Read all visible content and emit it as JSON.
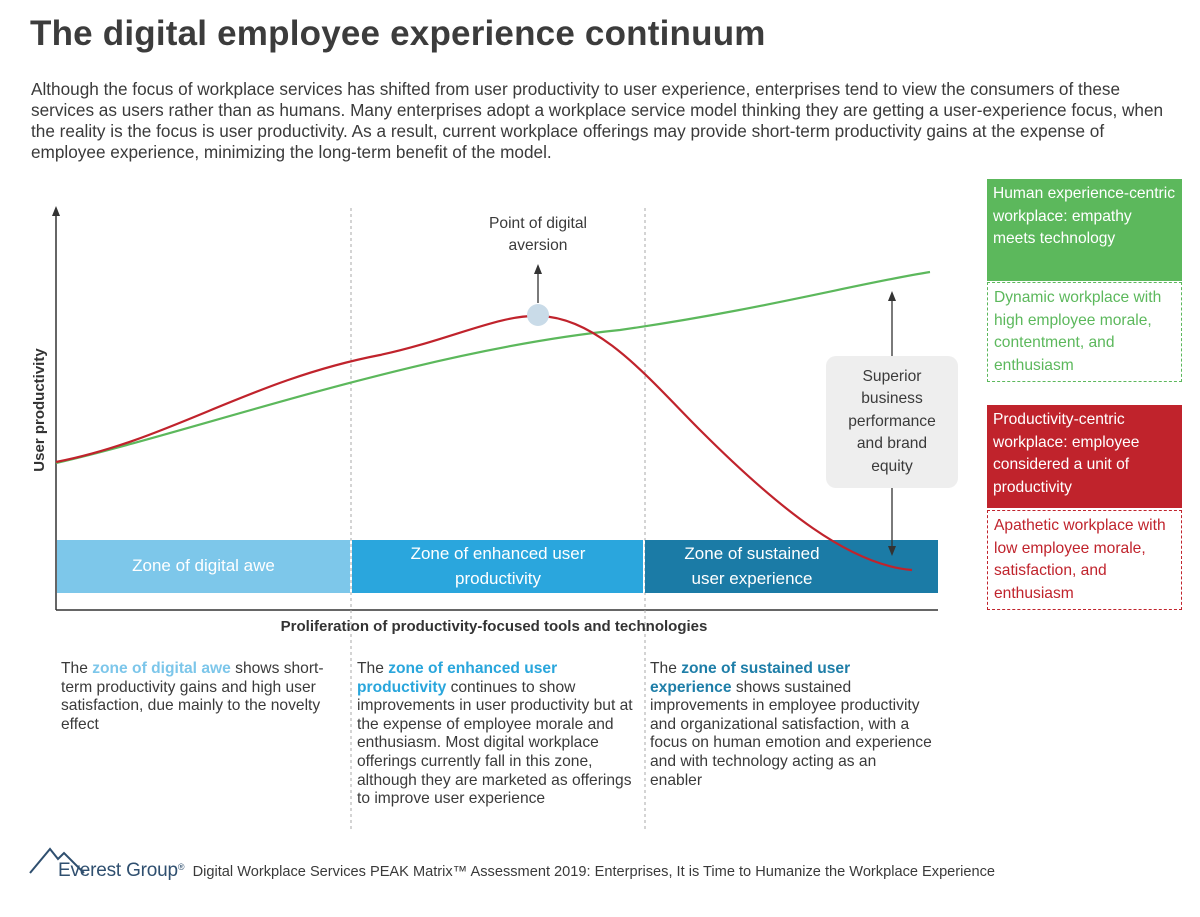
{
  "title": "The digital employee experience continuum",
  "intro": "Although the focus of workplace services has shifted from user productivity to user experience, enterprises tend to view the consumers of these services as users rather than as humans. Many enterprises adopt a workplace service model thinking they are getting a user-experience focus, when the reality is the focus is user productivity. As a result, current workplace offerings may provide short-term productivity gains at the expense of employee experience, minimizing the long-term benefit of the model.",
  "chart": {
    "y_axis_label": "User productivity",
    "x_axis_label": "Proliferation of productivity-focused tools and technologies",
    "peak_label_line1": "Point of digital",
    "peak_label_line2": "aversion",
    "callout": "Superior business performance and brand equity",
    "zones": [
      {
        "label": "Zone of digital awe",
        "color": "#7dc7ea"
      },
      {
        "label": "Zone of enhanced user productivity",
        "color": "#2aa6dd"
      },
      {
        "label": "Zone of sustained user experience",
        "color": "#1b7ba6"
      }
    ],
    "curve_colors": {
      "human": "#5cb85c",
      "productivity": "#c0232c"
    }
  },
  "descriptions": [
    {
      "pre": "The ",
      "highlight": "zone of digital awe",
      "post": " shows short-term productivity gains and high user satisfaction, due mainly to the novelty effect"
    },
    {
      "pre": "The ",
      "highlight": "zone of enhanced user productivity",
      "post": " continues to show improvements in user productivity but at the expense of employee morale and enthusiasm. Most digital workplace offerings currently fall in this zone, although they are marketed as offerings to improve user experience"
    },
    {
      "pre": "The ",
      "highlight": "zone of sustained user experience",
      "post": " shows sustained improvements in employee productivity and organizational satisfaction, with a focus on human emotion and experience and with technology acting as an enabler"
    }
  ],
  "legend": {
    "human_title": "Human experience-centric workplace: empathy meets technology",
    "human_desc": "Dynamic workplace with high employee morale, contentment, and enthusiasm",
    "human_color": "#5cb85c",
    "prod_title": "Productivity-centric workplace: employee considered a unit of productivity",
    "prod_desc": "Apathetic workplace with low employee morale, satisfaction, and enthusiasm",
    "prod_color": "#c0232c"
  },
  "footer": {
    "logo": "Everest Group",
    "registered": "®",
    "text": "Digital Workplace Services PEAK Matrix™ Assessment 2019: Enterprises, It is Time to Humanize the Workplace Experience"
  }
}
